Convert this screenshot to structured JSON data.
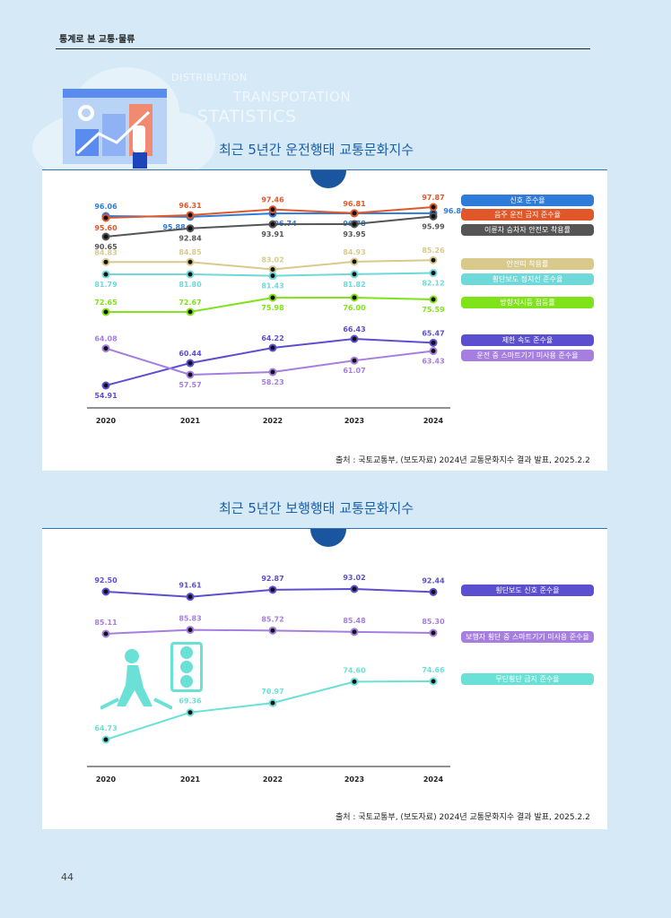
{
  "header": {
    "section": "통계로 본 교통·물류"
  },
  "banner": {
    "words": [
      "DISTRIBUTION",
      "TRANSPOTATION",
      "STATISTICS"
    ]
  },
  "page_number": "44",
  "chart_data": [
    {
      "type": "line",
      "title": "최근 5년간 운전행태 교통문화지수",
      "categories": [
        "2020",
        "2021",
        "2022",
        "2023",
        "2024"
      ],
      "series": [
        {
          "name": "신호 준수율",
          "color": "#2f7bd8",
          "values": [
            96.06,
            95.88,
            96.74,
            96.78,
            96.8
          ]
        },
        {
          "name": "음주 운전 금지 준수율",
          "color": "#e0582a",
          "values": [
            95.6,
            96.31,
            97.46,
            96.81,
            97.87
          ]
        },
        {
          "name": "이륜차 승차자 안전모 착용률",
          "color": "#555555",
          "values": [
            90.65,
            92.84,
            93.91,
            93.95,
            95.99
          ]
        },
        {
          "name": "안전띠 착용률",
          "color": "#d9c98a",
          "values": [
            84.83,
            84.85,
            83.02,
            84.93,
            85.26
          ]
        },
        {
          "name": "횡단보도 정지선 준수율",
          "color": "#6fd9d9",
          "values": [
            81.79,
            81.8,
            81.43,
            81.82,
            82.12
          ]
        },
        {
          "name": "방향지시등 점등률",
          "color": "#7fe31a",
          "values": [
            72.65,
            72.67,
            75.98,
            76.0,
            75.59
          ]
        },
        {
          "name": "제한 속도 준수율",
          "color": "#5b4fd0",
          "values": [
            54.91,
            60.44,
            64.22,
            66.43,
            65.47
          ]
        },
        {
          "name": "운전 중 스마트기기 미사용 준수율",
          "color": "#a57ee0",
          "values": [
            64.08,
            57.57,
            58.23,
            61.07,
            63.43
          ]
        }
      ],
      "source": "출처 : 국토교통부, (보도자료) 2024년 교통문화지수 결과 발표, 2025.2.2"
    },
    {
      "type": "line",
      "title": "최근 5년간 보행행태 교통문화지수",
      "categories": [
        "2020",
        "2021",
        "2022",
        "2023",
        "2024"
      ],
      "series": [
        {
          "name": "횡단보도 신호 준수율",
          "color": "#5b4fd0",
          "values": [
            92.5,
            91.61,
            92.87,
            93.02,
            92.44
          ]
        },
        {
          "name": "보행자 횡단 중 스마트기기 미사용 준수율",
          "color": "#a57ee0",
          "values": [
            85.11,
            85.83,
            85.72,
            85.48,
            85.3
          ]
        },
        {
          "name": "무단횡단 금지 준수율",
          "color": "#6be0d6",
          "values": [
            64.73,
            69.36,
            70.97,
            74.6,
            74.66
          ]
        }
      ],
      "source": "출처 : 국토교통부, (보도자료) 2024년 교통문화지수 결과 발표, 2025.2.2"
    }
  ]
}
